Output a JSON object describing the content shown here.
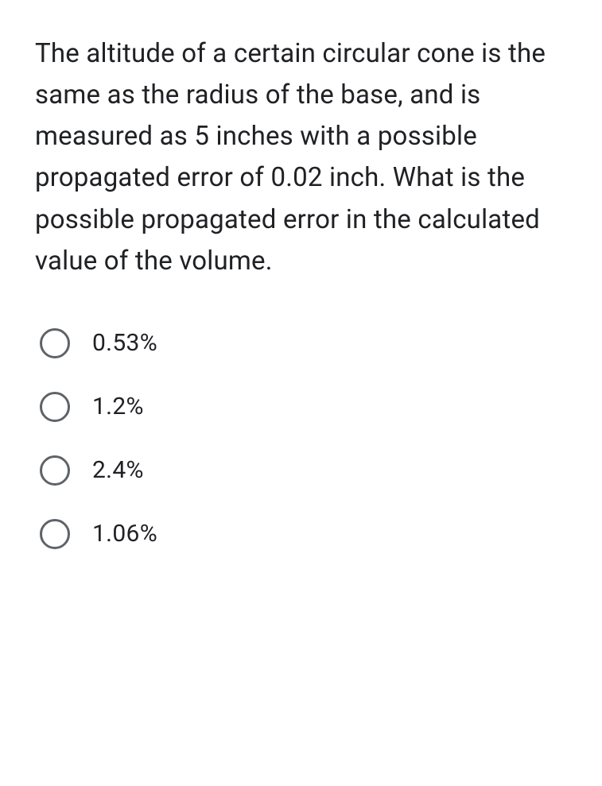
{
  "question_text": "The altitude of a certain circular cone is the same as the radius of the base, and is measured as 5 inches with a possible propagated error of 0.02 inch. What is the possible propagated error in the calculated value of the volume.",
  "options": [
    {
      "label": "0.53%"
    },
    {
      "label": "1.2%"
    },
    {
      "label": "2.4%"
    },
    {
      "label": "1.06%"
    }
  ],
  "colors": {
    "text": "#202124",
    "radio_border": "#5f6368",
    "background": "#ffffff"
  },
  "typography": {
    "question_fontsize": 33,
    "option_fontsize": 30,
    "line_height": 1.58
  }
}
